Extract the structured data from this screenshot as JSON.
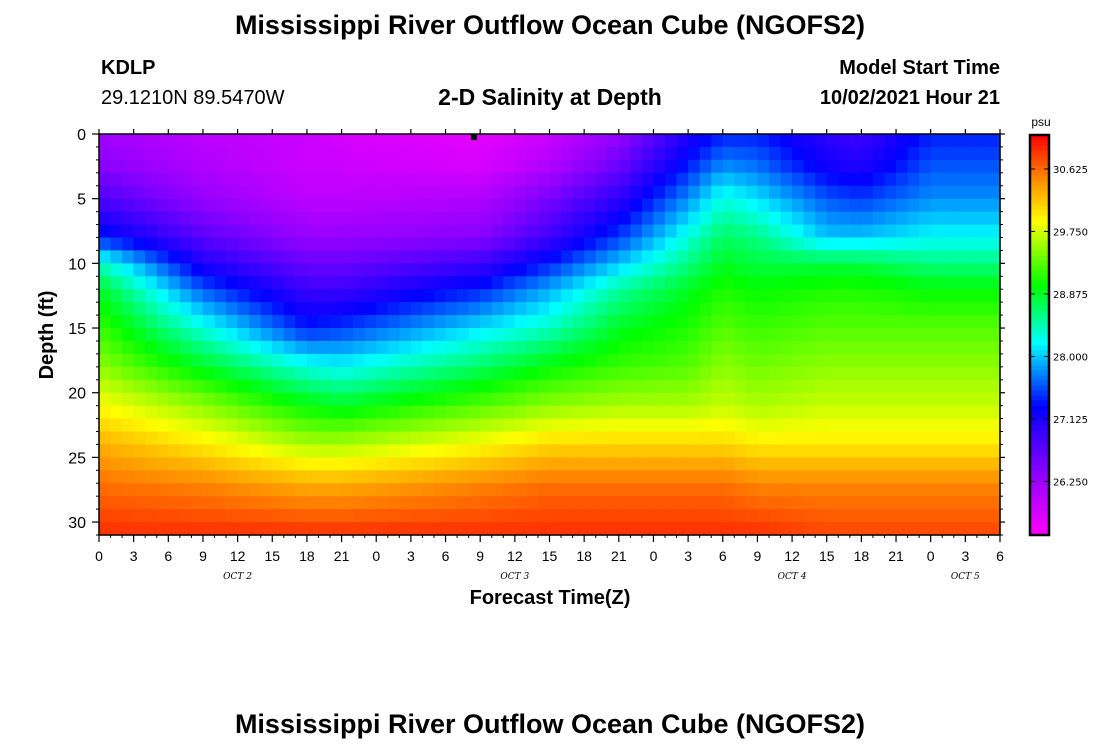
{
  "header": {
    "title": "Mississippi River Outflow Ocean Cube (NGOFS2)",
    "station_id": "KDLP",
    "station_coords": "29.1210N  89.5470W",
    "subtitle": "2-D Salinity at Depth",
    "model_start_label": "Model Start Time",
    "model_start_value": "10/02/2021 Hour 21"
  },
  "footer": {
    "title": "Mississippi River Outflow Ocean Cube (NGOFS2)"
  },
  "chart_data": {
    "type": "heatmap",
    "xlabel": "Forecast Time(Z)",
    "ylabel": "Depth (ft)",
    "x_hours_range": [
      0,
      78
    ],
    "ylim": [
      0,
      31
    ],
    "y_inverted": true,
    "x_tick_labels": [
      "0",
      "3",
      "6",
      "9",
      "12",
      "15",
      "18",
      "21",
      "0",
      "3",
      "6",
      "9",
      "12",
      "15",
      "18",
      "21",
      "0",
      "3",
      "6",
      "9",
      "12",
      "15",
      "18",
      "21",
      "0",
      "3",
      "6"
    ],
    "y_tick_labels": [
      "0",
      "5",
      "10",
      "15",
      "20",
      "25",
      "30"
    ],
    "y_ticks": [
      0,
      5,
      10,
      15,
      20,
      25,
      30
    ],
    "day_labels": [
      {
        "label": "OCT 2",
        "x_hours": 12
      },
      {
        "label": "OCT 3",
        "x_hours": 36
      },
      {
        "label": "OCT 4",
        "x_hours": 60
      },
      {
        "label": "OCT 5",
        "x_hours": 75
      }
    ],
    "colorbar": {
      "unit": "psu",
      "range": [
        25.5,
        31.1
      ],
      "tick_labels": [
        "30.625",
        "29.750",
        "28.875",
        "28.000",
        "27.125",
        "26.250"
      ],
      "tick_values": [
        30.625,
        29.75,
        28.875,
        28.0,
        27.125,
        26.25
      ]
    },
    "colors": {
      "magenta": "#ff00ff",
      "violet": "#8800ff",
      "blue": "#0000ff",
      "cyan": "#00ffff",
      "green": "#00ff00",
      "yellow": "#ffff00",
      "orange": "#ff8800",
      "red": "#ff0000"
    },
    "salinity_profiles": {
      "depths_ft": [
        0,
        2.5,
        5,
        8,
        10,
        12,
        15,
        18,
        21,
        24,
        27,
        31
      ],
      "time_hours": [
        0,
        9,
        18,
        21,
        33,
        39,
        45,
        51,
        54,
        57,
        63,
        66,
        72,
        78
      ],
      "values": [
        [
          26.2,
          26.4,
          26.8,
          27.4,
          28.4,
          28.9,
          29.2,
          29.5,
          29.9,
          30.3,
          30.6,
          30.9
        ],
        [
          26.0,
          26.1,
          26.3,
          26.7,
          27.1,
          27.6,
          28.3,
          28.9,
          29.5,
          30.0,
          30.5,
          30.9
        ],
        [
          25.9,
          25.9,
          26.0,
          26.3,
          26.6,
          26.9,
          27.4,
          28.3,
          29.0,
          29.6,
          30.3,
          30.9
        ],
        [
          25.8,
          25.9,
          26.0,
          26.3,
          26.6,
          26.9,
          27.5,
          28.2,
          28.9,
          29.6,
          30.3,
          30.9
        ],
        [
          25.7,
          25.8,
          26.1,
          26.4,
          26.9,
          27.4,
          28.1,
          28.7,
          29.3,
          29.9,
          30.5,
          30.9
        ],
        [
          25.9,
          26.1,
          26.5,
          26.9,
          27.4,
          27.9,
          28.4,
          29.0,
          29.5,
          30.1,
          30.6,
          30.9
        ],
        [
          26.3,
          26.6,
          27.0,
          27.5,
          28.0,
          28.5,
          28.9,
          29.2,
          29.6,
          30.1,
          30.6,
          30.9
        ],
        [
          27.1,
          27.4,
          27.8,
          28.3,
          28.6,
          28.9,
          29.1,
          29.3,
          29.6,
          30.1,
          30.6,
          30.9
        ],
        [
          27.4,
          27.8,
          28.3,
          28.7,
          28.9,
          29.1,
          29.3,
          29.5,
          29.7,
          30.1,
          30.6,
          30.9
        ],
        [
          27.4,
          27.7,
          28.1,
          28.6,
          28.8,
          29.0,
          29.2,
          29.4,
          29.6,
          30.0,
          30.5,
          30.9
        ],
        [
          27.0,
          27.2,
          27.6,
          28.0,
          28.8,
          29.1,
          29.3,
          29.5,
          29.7,
          30.0,
          30.5,
          30.8
        ],
        [
          26.9,
          27.1,
          27.5,
          28.0,
          28.8,
          29.1,
          29.3,
          29.5,
          29.7,
          30.0,
          30.5,
          30.8
        ],
        [
          27.4,
          27.6,
          27.8,
          28.2,
          28.6,
          29.0,
          29.3,
          29.5,
          29.7,
          30.0,
          30.5,
          30.8
        ],
        [
          27.4,
          27.6,
          27.8,
          28.2,
          28.6,
          29.0,
          29.3,
          29.5,
          29.7,
          30.0,
          30.5,
          30.8
        ]
      ]
    }
  }
}
